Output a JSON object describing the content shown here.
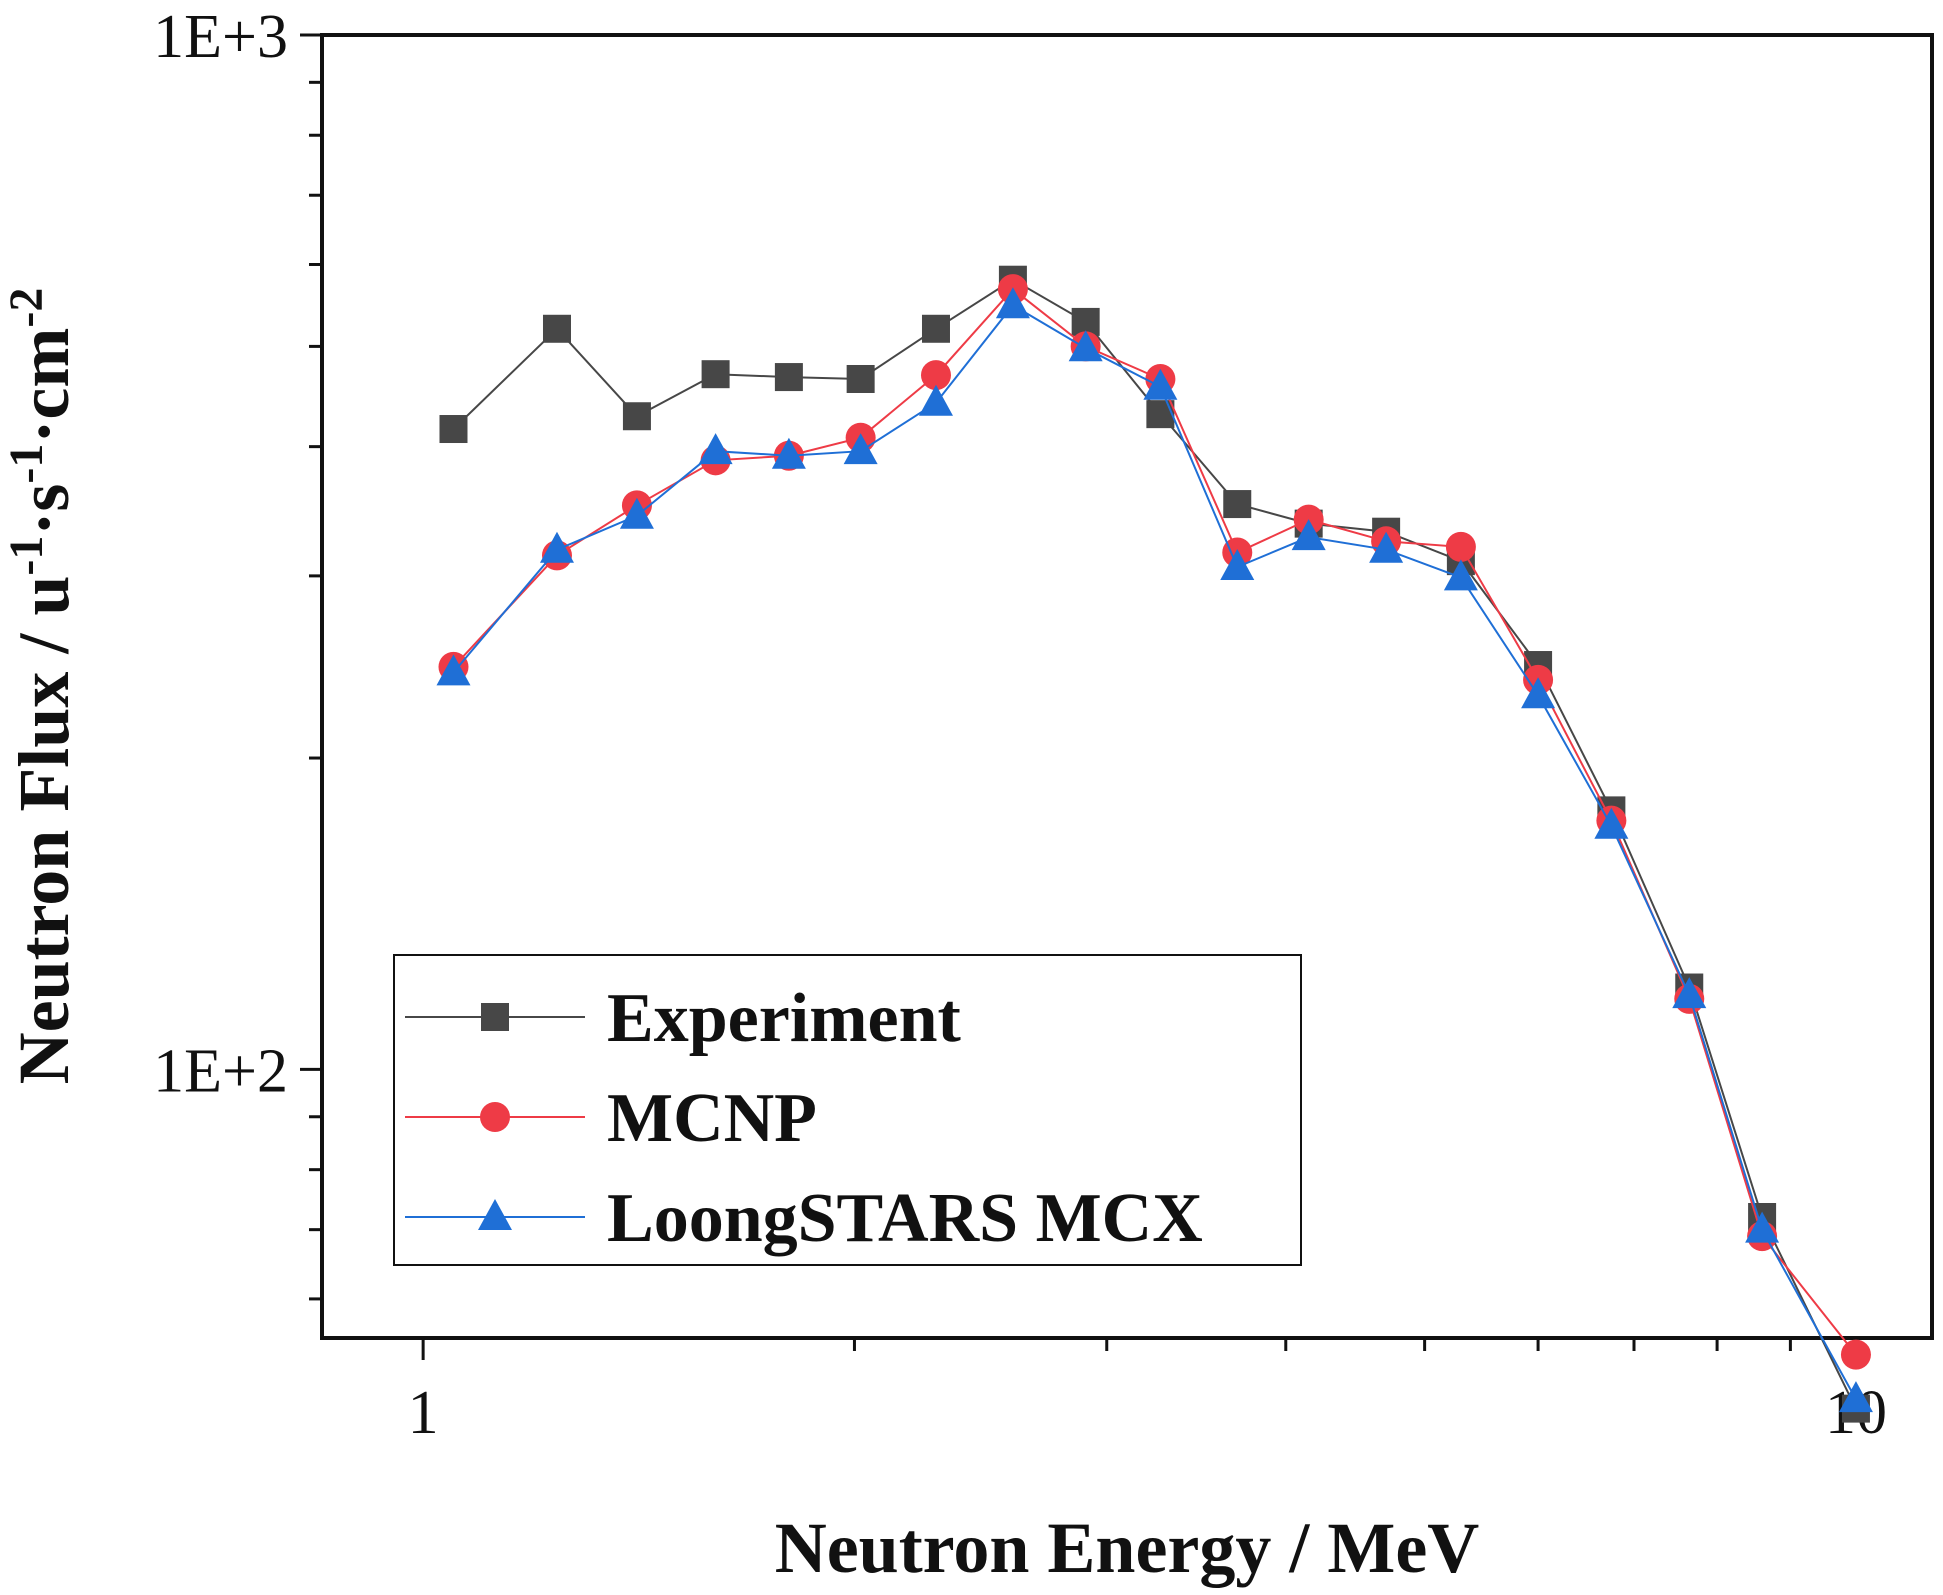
{
  "chart_data": {
    "type": "line",
    "xlabel": "Neutron Energy / MeV",
    "ylabel": "Neutron Flux / u",
    "ylabel_parts": [
      "Neutron Flux / u",
      "-1",
      "·s",
      "-1",
      "·cm",
      "-2"
    ],
    "x_scale": "log",
    "y_scale": "log",
    "xlim": [
      0.85,
      11.3
    ],
    "ylim": [
      55,
      1000
    ],
    "x_ticks": [
      1,
      10
    ],
    "x_tick_labels": [
      "1",
      "10"
    ],
    "y_ticks": [
      100,
      1000
    ],
    "y_tick_labels": [
      "1E+2",
      "1E+3"
    ],
    "grid": false,
    "legend_position": "bottom-left",
    "x": [
      1.05,
      1.24,
      1.41,
      1.6,
      1.8,
      2.02,
      2.28,
      2.58,
      2.9,
      3.27,
      3.7,
      4.15,
      4.7,
      5.3,
      6.0,
      6.75,
      7.65,
      8.6,
      10.0
    ],
    "series": [
      {
        "name": "Experiment",
        "color": "#474747",
        "marker": "square",
        "values": [
          416,
          520,
          428,
          470,
          467,
          465,
          520,
          580,
          528,
          430,
          352,
          337,
          331,
          310,
          246,
          178,
          120,
          72,
          47
        ]
      },
      {
        "name": "MCNP",
        "color": "#ee3b46",
        "marker": "circle",
        "values": [
          245,
          314,
          351,
          388,
          392,
          408,
          469,
          568,
          500,
          465,
          316,
          340,
          324,
          320,
          238,
          174,
          117,
          69,
          53
        ]
      },
      {
        "name": "LoongSTARS MCX",
        "color": "#1f6fd6",
        "marker": "triangle",
        "values": [
          242,
          318,
          343,
          396,
          392,
          396,
          441,
          548,
          498,
          457,
          306,
          327,
          318,
          299,
          230,
          172,
          118,
          70,
          48
        ]
      }
    ]
  }
}
